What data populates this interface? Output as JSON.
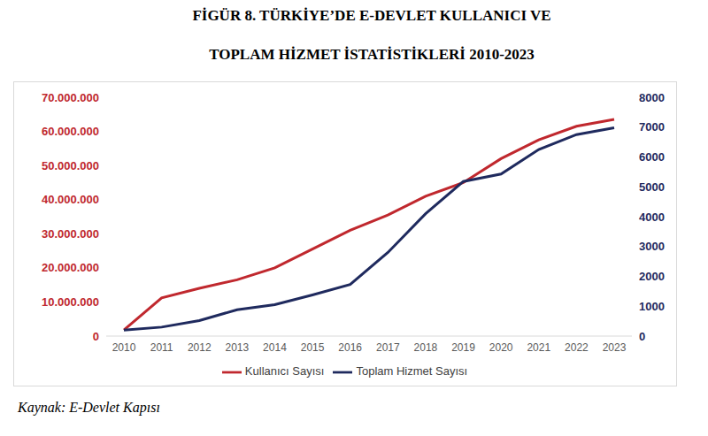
{
  "chart_data": {
    "type": "line",
    "title": "FİGÜR 8. TÜRKİYE’DE E-DEVLET KULLANICI VE\nTOPLAM HİZMET İSTATİSTİKLERİ 2010-2023",
    "source": "Kaynak: E-Devlet Kapısı",
    "categories": [
      "2010",
      "2011",
      "2012",
      "2013",
      "2014",
      "2015",
      "2016",
      "2017",
      "2018",
      "2019",
      "2020",
      "2021",
      "2022",
      "2023"
    ],
    "series": [
      {
        "name": "Kullanıcı Sayısı",
        "color": "#C0282E",
        "values": [
          1800000,
          11200000,
          14000000,
          16500000,
          20000000,
          25500000,
          31000000,
          35500000,
          41000000,
          45000000,
          52000000,
          57500000,
          61500000,
          63500000
        ]
      },
      {
        "name": "Toplam Hizmet Sayısı",
        "color": "#1F2A5E",
        "axis": "y2",
        "values": [
          200,
          300,
          520,
          880,
          1050,
          1380,
          1730,
          2800,
          4100,
          5180,
          5430,
          6250,
          6750,
          6980
        ]
      }
    ],
    "ylim": [
      0,
      70000000
    ],
    "yticks": [
      0,
      {
        "value": 10000000,
        "label": "10.000.000"
      },
      {
        "value": 20000000,
        "label": "20.000.000"
      },
      {
        "value": 30000000,
        "label": "30.000.000"
      },
      {
        "value": 40000000,
        "label": "40.000.000"
      },
      {
        "value": 50000000,
        "label": "50.000.000"
      },
      {
        "value": 60000000,
        "label": "60.000.000"
      },
      {
        "value": 70000000,
        "label": "70.000.000"
      }
    ],
    "y2lim": [
      0,
      8000
    ],
    "y2ticks": [
      0,
      1000,
      2000,
      3000,
      4000,
      5000,
      6000,
      7000,
      8000
    ],
    "grid": false,
    "legend": "bottom"
  }
}
